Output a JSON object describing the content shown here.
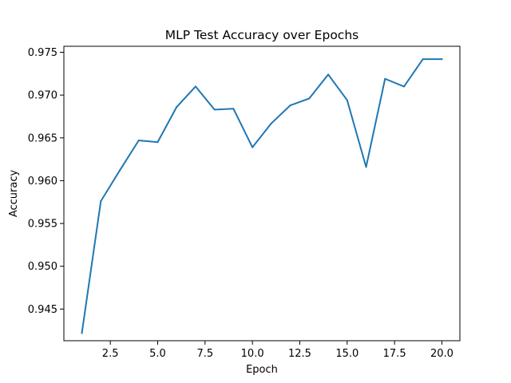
{
  "chart_data": {
    "type": "line",
    "title": "MLP Test Accuracy over Epochs",
    "xlabel": "Epoch",
    "ylabel": "Accuracy",
    "xlim": [
      0.05,
      20.95
    ],
    "ylim": [
      0.9413,
      0.9757
    ],
    "x_ticks": [
      2.5,
      5.0,
      7.5,
      10.0,
      12.5,
      15.0,
      17.5,
      20.0
    ],
    "x_tick_labels": [
      "2.5",
      "5.0",
      "7.5",
      "10.0",
      "12.5",
      "15.0",
      "17.5",
      "20.0"
    ],
    "y_ticks": [
      0.945,
      0.95,
      0.955,
      0.96,
      0.965,
      0.97,
      0.975
    ],
    "y_tick_labels": [
      "0.945",
      "0.950",
      "0.955",
      "0.960",
      "0.965",
      "0.970",
      "0.975"
    ],
    "grid": false,
    "legend": "none",
    "line_color": "#1f77b4",
    "series": [
      {
        "x": [
          1,
          2,
          3,
          4,
          5,
          6,
          7,
          8,
          9,
          10,
          11,
          12,
          13,
          14,
          15,
          16,
          17,
          18,
          19,
          20
        ],
        "values": [
          0.9422,
          0.9576,
          0.9612,
          0.9647,
          0.9645,
          0.9686,
          0.971,
          0.9683,
          0.9684,
          0.9639,
          0.9667,
          0.9688,
          0.9696,
          0.9724,
          0.9694,
          0.9616,
          0.9719,
          0.971,
          0.9742,
          0.9742
        ]
      }
    ]
  }
}
